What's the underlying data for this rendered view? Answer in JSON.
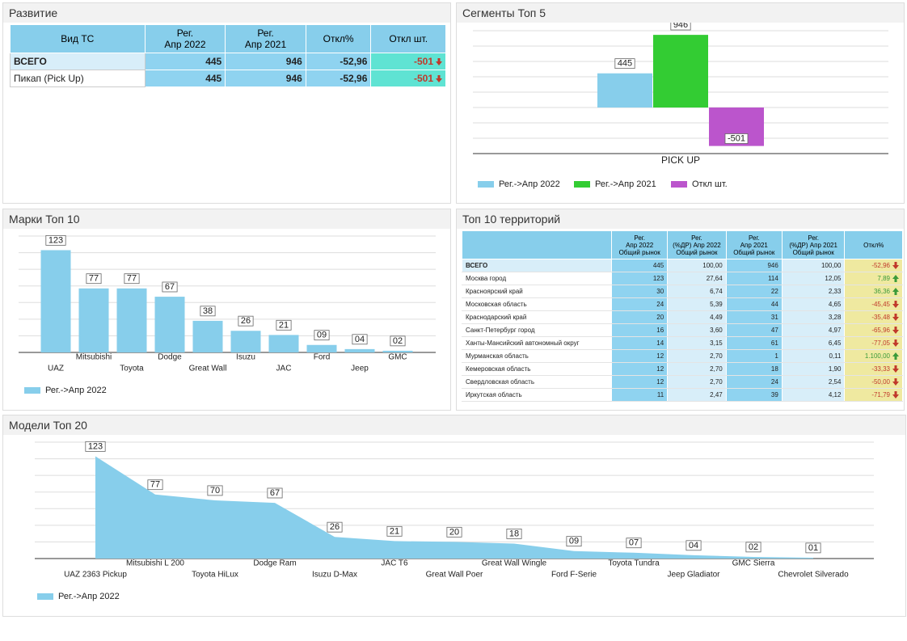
{
  "development": {
    "title": "Развитие",
    "headers": [
      "Вид ТС",
      "Рег.\nАпр 2022",
      "Рег.\nАпр 2021",
      "Откл%",
      "Откл шт."
    ],
    "rows": [
      [
        "ВСЕГО",
        "445",
        "946",
        "-52,96",
        "-501"
      ],
      [
        "Пикап (Pick Up)",
        "445",
        "946",
        "-52,96",
        "-501"
      ]
    ]
  },
  "territories": {
    "title": "Топ 10 территорий",
    "headers": [
      "Рег.\nАпр 2022\nОбщий рынок",
      "Рег.\n(%ДР) Апр 2022\nОбщий рынок",
      "Рег.\nАпр 2021\nОбщий рынок",
      "Рег.\n(%ДР) Апр 2021\nОбщий рынок",
      "Откл%"
    ],
    "rows": [
      [
        "ВСЕГО",
        "445",
        "100,00",
        "946",
        "100,00",
        "-52,96"
      ],
      [
        "Москва город",
        "123",
        "27,64",
        "114",
        "12,05",
        "7,89"
      ],
      [
        "Красноярский край",
        "30",
        "6,74",
        "22",
        "2,33",
        "36,36"
      ],
      [
        "Московская область",
        "24",
        "5,39",
        "44",
        "4,65",
        "-45,45"
      ],
      [
        "Краснодарский край",
        "20",
        "4,49",
        "31",
        "3,28",
        "-35,48"
      ],
      [
        "Санкт-Петербург город",
        "16",
        "3,60",
        "47",
        "4,97",
        "-65,96"
      ],
      [
        "Ханты-Мансийский автономный округ",
        "14",
        "3,15",
        "61",
        "6,45",
        "-77,05"
      ],
      [
        "Мурманская область",
        "12",
        "2,70",
        "1",
        "0,11",
        "1.100,00"
      ],
      [
        "Кемеровская область",
        "12",
        "2,70",
        "18",
        "1,90",
        "-33,33"
      ],
      [
        "Свердловская область",
        "12",
        "2,70",
        "24",
        "2,54",
        "-50,00"
      ],
      [
        "Иркутская область",
        "11",
        "2,47",
        "39",
        "4,12",
        "-71,79"
      ]
    ]
  },
  "chart_data": [
    {
      "type": "bar",
      "title": "Сегменты Топ 5",
      "categories": [
        "PICK UP"
      ],
      "ylim": [
        -600,
        1000
      ],
      "yticks": [
        -600,
        -400,
        -200,
        0,
        200,
        400,
        600,
        800,
        1000
      ],
      "grid": true,
      "series": [
        {
          "name": "Рег.->Апр 2022",
          "color": "#87ceeb",
          "values": [
            445
          ]
        },
        {
          "name": "Рег.->Апр 2021",
          "color": "#33cc33",
          "values": [
            946
          ]
        },
        {
          "name": "Откл шт.",
          "color": "#bb55cc",
          "values": [
            -501
          ]
        }
      ]
    },
    {
      "type": "bar",
      "title": "Марки Топ 10",
      "categories": [
        "UAZ",
        "Mitsubishi",
        "Toyota",
        "Dodge",
        "Great Wall",
        "Isuzu",
        "JAC",
        "Ford",
        "Jeep",
        "GMC"
      ],
      "ylim": [
        0,
        140
      ],
      "yticks": [
        0,
        20,
        40,
        60,
        80,
        100,
        120,
        140
      ],
      "grid": true,
      "series": [
        {
          "name": "Рег.->Апр 2022",
          "color": "#87ceeb",
          "values": [
            123,
            77,
            77,
            67,
            38,
            26,
            21,
            9,
            4,
            2
          ],
          "value_labels": [
            "123",
            "77",
            "77",
            "67",
            "38",
            "26",
            "21",
            "09",
            "04",
            "02"
          ]
        }
      ]
    },
    {
      "type": "area",
      "title": "Модели Топ 20",
      "categories": [
        "UAZ 2363 Pickup",
        "Mitsubishi L 200",
        "Toyota HiLux",
        "Dodge Ram",
        "Isuzu D-Max",
        "JAC T6",
        "Great Wall Poer",
        "Great Wall Wingle",
        "Ford F-Serie",
        "Toyota Tundra",
        "Jeep Gladiator",
        "GMC Sierra",
        "Chevrolet Silverado"
      ],
      "ylim": [
        0,
        140
      ],
      "yticks": [
        0,
        20,
        40,
        60,
        80,
        100,
        120,
        140
      ],
      "grid": true,
      "series": [
        {
          "name": "Рег.->Апр 2022",
          "color": "#87ceeb",
          "values": [
            123,
            77,
            70,
            67,
            26,
            21,
            20,
            18,
            9,
            7,
            4,
            2,
            1
          ],
          "value_labels": [
            "123",
            "77",
            "70",
            "67",
            "26",
            "21",
            "20",
            "18",
            "09",
            "07",
            "04",
            "02",
            "01"
          ]
        }
      ]
    }
  ]
}
